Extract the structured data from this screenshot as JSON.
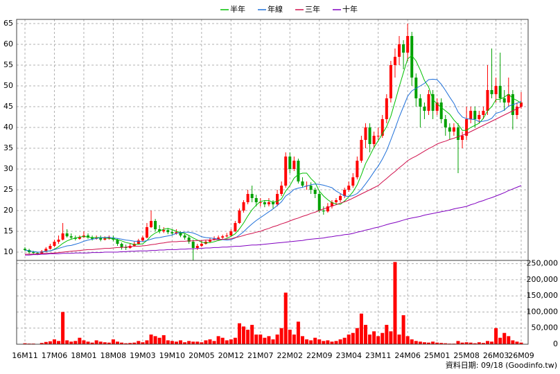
{
  "chart_data": {
    "type": "candlestick",
    "categories": [
      "16M11",
      null,
      null,
      null,
      null,
      null,
      null,
      "17M06",
      null,
      null,
      null,
      null,
      null,
      null,
      "18M01",
      null,
      null,
      null,
      null,
      null,
      null,
      "18M08",
      null,
      null,
      null,
      null,
      null,
      null,
      "19M03",
      null,
      null,
      null,
      null,
      null,
      null,
      "19M10",
      null,
      null,
      null,
      null,
      null,
      null,
      "20M05",
      null,
      null,
      null,
      null,
      null,
      null,
      "20M12",
      null,
      null,
      null,
      null,
      null,
      null,
      "21M07",
      null,
      null,
      null,
      null,
      null,
      null,
      "22M02",
      null,
      null,
      null,
      null,
      null,
      null,
      "22M09",
      null,
      null,
      null,
      null,
      null,
      null,
      "23M04",
      null,
      null,
      null,
      null,
      null,
      null,
      "23M11",
      null,
      null,
      null,
      null,
      null,
      null,
      "24M06",
      null,
      null,
      null,
      null,
      null,
      null,
      "25M01",
      null,
      null,
      null,
      null,
      null,
      null,
      "25M08",
      null,
      null,
      null,
      null,
      null,
      null,
      "26M03",
      null,
      null,
      null,
      null,
      null,
      "26M09"
    ],
    "ohlc": [
      [
        10.8,
        11.2,
        10.2,
        10.5
      ],
      [
        10.5,
        10.8,
        9.6,
        10
      ],
      [
        10,
        10.3,
        9.4,
        9.8
      ],
      [
        9.8,
        10,
        9.3,
        9.6
      ],
      [
        9.6,
        10.5,
        9.5,
        10.2
      ],
      [
        10.2,
        11.2,
        10,
        10.8
      ],
      [
        10.8,
        12,
        10.6,
        11.5
      ],
      [
        11.5,
        13,
        11.2,
        12.5
      ],
      [
        12.5,
        14,
        12,
        13
      ],
      [
        13,
        17,
        12.8,
        14.5
      ],
      [
        14.5,
        15.5,
        13.5,
        13.8
      ],
      [
        13.8,
        14.5,
        13,
        13.5
      ],
      [
        13.5,
        14,
        12.8,
        13.2
      ],
      [
        13.2,
        14,
        13,
        13.6
      ],
      [
        13.6,
        15,
        13.4,
        14
      ],
      [
        14,
        14.5,
        13.2,
        13.5
      ],
      [
        13.5,
        14,
        12.8,
        13.2
      ],
      [
        13.2,
        14,
        13,
        13.4
      ],
      [
        13.4,
        14,
        12.6,
        13
      ],
      [
        13,
        13.8,
        12.8,
        13.3
      ],
      [
        13.3,
        14,
        13,
        13.5
      ],
      [
        13.5,
        14,
        12.6,
        13
      ],
      [
        13,
        13.2,
        11.5,
        12
      ],
      [
        12,
        12.3,
        10.6,
        11.2
      ],
      [
        11.2,
        11.8,
        10.5,
        11
      ],
      [
        11,
        12,
        10.8,
        11.5
      ],
      [
        11.5,
        12.5,
        11.3,
        12
      ],
      [
        12,
        13.2,
        11.8,
        12.8
      ],
      [
        12.8,
        14,
        12.5,
        13.5
      ],
      [
        13.5,
        17,
        13.3,
        16
      ],
      [
        16,
        20,
        15.8,
        17.5
      ],
      [
        17.5,
        18,
        15,
        15.5
      ],
      [
        15.5,
        16.5,
        14.5,
        15
      ],
      [
        15,
        16,
        14.6,
        15.3
      ],
      [
        15.3,
        15.8,
        14.3,
        14.8
      ],
      [
        14.8,
        15.3,
        14,
        14.5
      ],
      [
        14.5,
        15.5,
        14.2,
        14.8
      ],
      [
        14.8,
        15,
        13.6,
        14
      ],
      [
        14,
        14.5,
        13,
        13.5
      ],
      [
        13.5,
        14,
        12,
        12.5
      ],
      [
        12.5,
        13,
        8,
        11
      ],
      [
        11,
        12,
        10.5,
        11.5
      ],
      [
        11.5,
        12.8,
        11.2,
        12
      ],
      [
        12,
        13,
        11.8,
        12.5
      ],
      [
        12.5,
        13.5,
        12.2,
        13
      ],
      [
        13,
        13.8,
        12.8,
        13.2
      ],
      [
        13.2,
        14,
        13,
        13.5
      ],
      [
        13.5,
        14.2,
        13.2,
        13.8
      ],
      [
        13.8,
        14.6,
        13.5,
        14
      ],
      [
        14,
        15.5,
        13.8,
        15
      ],
      [
        15,
        17.5,
        14.8,
        17
      ],
      [
        17,
        20.5,
        16.8,
        20
      ],
      [
        20,
        22.5,
        19.5,
        22
      ],
      [
        22,
        25,
        21.5,
        24
      ],
      [
        24,
        26,
        22,
        23
      ],
      [
        23,
        23.8,
        21,
        22
      ],
      [
        22,
        23,
        21,
        22
      ],
      [
        22,
        22.5,
        20.8,
        21.5
      ],
      [
        21.5,
        23,
        21,
        22
      ],
      [
        22,
        22.5,
        20.5,
        21.5
      ],
      [
        21.5,
        25,
        21,
        24
      ],
      [
        24,
        27,
        23.5,
        26
      ],
      [
        26,
        34,
        25.5,
        33
      ],
      [
        33,
        34,
        29,
        30
      ],
      [
        30,
        33,
        29.5,
        32
      ],
      [
        32,
        32.5,
        26.5,
        27
      ],
      [
        27,
        28,
        25.5,
        26
      ],
      [
        26,
        27,
        25,
        26
      ],
      [
        26,
        26.8,
        24,
        25
      ],
      [
        25,
        25.5,
        23,
        24
      ],
      [
        24,
        24.5,
        19.5,
        20
      ],
      [
        20,
        21,
        19,
        19.8
      ],
      [
        19.8,
        21.8,
        19.5,
        21
      ],
      [
        21,
        22.5,
        20.5,
        22
      ],
      [
        22,
        23,
        21.5,
        22.5
      ],
      [
        22.5,
        24,
        22,
        23.5
      ],
      [
        23.5,
        25.5,
        23,
        25
      ],
      [
        25,
        27,
        24.5,
        26
      ],
      [
        26,
        29,
        25.5,
        28
      ],
      [
        28,
        33,
        27.5,
        32
      ],
      [
        32,
        38,
        31.5,
        37
      ],
      [
        37,
        41,
        35,
        40
      ],
      [
        40,
        41,
        34,
        36
      ],
      [
        36,
        39,
        35,
        38
      ],
      [
        38,
        40,
        37,
        38
      ],
      [
        38,
        43,
        37.5,
        42
      ],
      [
        42,
        48,
        41,
        47
      ],
      [
        47,
        56,
        46,
        55
      ],
      [
        55,
        59,
        52,
        57
      ],
      [
        57,
        62,
        55,
        60
      ],
      [
        60,
        61,
        54,
        58
      ],
      [
        58,
        65,
        56,
        62
      ],
      [
        62,
        63,
        50,
        52
      ],
      [
        52,
        53,
        45,
        47
      ],
      [
        47,
        48,
        40,
        45
      ],
      [
        45,
        46,
        42,
        44
      ],
      [
        44,
        49,
        43,
        48
      ],
      [
        48,
        49,
        42,
        44
      ],
      [
        44,
        47,
        43,
        46
      ],
      [
        46,
        47,
        41,
        42
      ],
      [
        42,
        43,
        38,
        40
      ],
      [
        40,
        41,
        37,
        39
      ],
      [
        39,
        41,
        38,
        40
      ],
      [
        40,
        41,
        29,
        37
      ],
      [
        37,
        39,
        35,
        38
      ],
      [
        38,
        45,
        37,
        42
      ],
      [
        42,
        45,
        41,
        44
      ],
      [
        44,
        45,
        40,
        42
      ],
      [
        42,
        44,
        41,
        43
      ],
      [
        43,
        45,
        42,
        44
      ],
      [
        44,
        55,
        43,
        49
      ],
      [
        49,
        59,
        47,
        48
      ],
      [
        48,
        52,
        46,
        50
      ],
      [
        50,
        58,
        46,
        47
      ],
      [
        47,
        49,
        44,
        46
      ],
      [
        46,
        52,
        45,
        48
      ],
      [
        48,
        49,
        39.5,
        43
      ],
      [
        43,
        46,
        42,
        45
      ],
      [
        45,
        48.5,
        44.5,
        46
      ]
    ],
    "up_color": "#ff0000",
    "down_color": "#00a000",
    "series": [
      {
        "name": "半年",
        "color": "#00c000",
        "values": [
          10.5,
          10.3,
          10.1,
          10,
          10,
          10.2,
          10.3,
          10.7,
          11.3,
          12.1,
          12.7,
          13.1,
          13.4,
          13.6,
          13.8,
          13.6,
          13.5,
          13.5,
          13.5,
          13.4,
          13.3,
          13.2,
          13,
          12.7,
          12.3,
          12.1,
          11.8,
          11.9,
          12,
          12.8,
          13.9,
          14.6,
          15.1,
          15.5,
          15.7,
          15.4,
          15,
          14.7,
          14.5,
          14,
          13.4,
          12.9,
          12.4,
          12.2,
          12.3,
          12.5,
          12.8,
          13,
          13.3,
          13.8,
          14.4,
          15.6,
          17,
          18.7,
          20.2,
          21.3,
          22.2,
          22.4,
          22.4,
          22,
          22.2,
          22.8,
          24.7,
          26,
          27.8,
          28.7,
          29,
          29,
          27.7,
          26.7,
          24.7,
          23.5,
          22.6,
          21.9,
          21.6,
          21.5,
          22.3,
          23.3,
          24.5,
          26.2,
          28.6,
          31.3,
          33.2,
          35.2,
          36.8,
          38.5,
          40.2,
          42.7,
          46.2,
          49.8,
          53.2,
          56.5,
          57.3,
          56,
          53.8,
          51.3,
          49.7,
          46.7,
          45.7,
          44.8,
          44,
          43.2,
          41.8,
          40.7,
          39.3,
          39.3,
          40,
          40.5,
          41,
          42.2,
          44,
          45,
          46.7,
          46.8,
          47.3,
          48,
          47,
          46.5,
          45.8
        ]
      },
      {
        "name": "年線",
        "color": "#1e6fd9",
        "values": [
          10.5,
          10.3,
          10.1,
          10,
          10,
          10.2,
          10.3,
          10.6,
          10.9,
          11.2,
          11.5,
          11.6,
          11.9,
          12.2,
          12.6,
          12.9,
          13.1,
          13.3,
          13.5,
          13.5,
          13.6,
          13.4,
          13.3,
          13.1,
          12.9,
          12.8,
          12.6,
          12.6,
          12.5,
          12.8,
          13.1,
          13.4,
          13.5,
          13.7,
          13.9,
          14.1,
          14.5,
          14.7,
          14.8,
          14.8,
          14.6,
          14.2,
          13.7,
          13.5,
          13.4,
          13.3,
          13.1,
          13,
          12.9,
          13,
          13.4,
          14.1,
          14.9,
          15.9,
          16.8,
          17.6,
          18.3,
          19,
          19.7,
          20.4,
          21.2,
          22.1,
          23.5,
          24.2,
          25.1,
          25.4,
          25.6,
          25.9,
          26.2,
          26.4,
          26.3,
          26.1,
          25.8,
          25.5,
          24.7,
          24.1,
          23.5,
          23.4,
          23.6,
          24.1,
          25.1,
          26.4,
          27.8,
          29.3,
          30.7,
          32.4,
          34.4,
          37,
          39.7,
          42.5,
          45,
          47.5,
          48.8,
          49.4,
          50,
          50.6,
          51.5,
          51.6,
          51.5,
          50.4,
          48.9,
          47.3,
          45.8,
          43.7,
          42.5,
          42.1,
          42,
          41.9,
          41.4,
          41.5,
          41.7,
          42.2,
          43.4,
          43.7,
          44.2,
          45.1,
          45.5,
          45.8,
          46.3
        ]
      },
      {
        "name": "三年",
        "color": "#d0104c",
        "values": [
          9.5,
          9.5,
          9.5,
          9.6,
          9.6,
          9.7,
          9.7,
          9.8,
          9.9,
          10,
          10.1,
          10.2,
          10.3,
          10.4,
          10.5,
          10.6,
          10.6,
          10.7,
          10.8,
          10.9,
          10.9,
          11,
          11.1,
          11.1,
          11.2,
          11.3,
          11.4,
          11.4,
          11.5,
          11.6,
          11.8,
          11.9,
          12.1,
          12.2,
          12.4,
          12.5,
          12.5,
          12.6,
          12.6,
          12.7,
          12.7,
          12.8,
          12.8,
          12.9,
          12.9,
          13,
          13,
          13.1,
          13.1,
          13.2,
          13.5,
          13.7,
          14,
          14.3,
          14.5,
          14.8,
          15,
          15.4,
          15.7,
          16.1,
          16.4,
          16.8,
          17.1,
          17.5,
          17.9,
          18.2,
          18.6,
          18.9,
          19.3,
          19.6,
          20,
          20.4,
          20.7,
          21.1,
          21.4,
          21.8,
          22.1,
          22.5,
          23,
          23.5,
          24,
          24.5,
          25,
          25.5,
          26,
          26.9,
          27.7,
          28.6,
          29.4,
          30.3,
          31.1,
          32,
          32.6,
          33.1,
          33.7,
          34.3,
          34.9,
          35.4,
          36,
          36.4,
          36.7,
          37.1,
          37.4,
          37.8,
          38.1,
          38.5,
          39,
          39.5,
          40,
          40.5,
          41,
          41.5,
          42,
          42.5,
          43,
          43.5,
          44,
          44.5,
          45
        ]
      },
      {
        "name": "十年",
        "color": "#8000c0",
        "values": [
          9.3,
          9.3,
          9.4,
          9.4,
          9.5,
          9.5,
          9.6,
          9.6,
          9.6,
          9.7,
          9.7,
          9.7,
          9.8,
          9.8,
          9.8,
          9.8,
          9.9,
          9.9,
          9.9,
          10,
          10,
          10,
          10,
          10.1,
          10.1,
          10.2,
          10.2,
          10.3,
          10.3,
          10.3,
          10.4,
          10.4,
          10.5,
          10.5,
          10.6,
          10.6,
          10.6,
          10.7,
          10.7,
          10.8,
          10.8,
          10.9,
          10.9,
          11,
          11,
          11.1,
          11.1,
          11.2,
          11.2,
          11.3,
          11.4,
          11.4,
          11.5,
          11.6,
          11.7,
          11.7,
          11.8,
          11.9,
          12,
          12.1,
          12.2,
          12.3,
          12.4,
          12.5,
          12.6,
          12.7,
          12.8,
          13,
          13.1,
          13.2,
          13.3,
          13.4,
          13.6,
          13.7,
          13.9,
          14,
          14.2,
          14.3,
          14.5,
          14.8,
          15,
          15.3,
          15.5,
          15.8,
          16,
          16.3,
          16.6,
          16.9,
          17.1,
          17.4,
          17.7,
          18,
          18.2,
          18.4,
          18.6,
          18.9,
          19.1,
          19.3,
          19.5,
          19.7,
          19.9,
          20.1,
          20.4,
          20.6,
          20.8,
          21,
          21.4,
          21.7,
          22.1,
          22.4,
          22.8,
          23.1,
          23.5,
          23.9,
          24.3,
          24.8,
          25.2,
          25.6,
          26
        ]
      }
    ],
    "volume": [
      3000,
      2000,
      2000,
      1000,
      4000,
      7000,
      9000,
      15000,
      10000,
      100000,
      12000,
      8000,
      10000,
      20000,
      12000,
      8000,
      5000,
      12000,
      8000,
      6000,
      5000,
      15000,
      8000,
      5000,
      3000,
      4000,
      5000,
      10000,
      6000,
      12000,
      30000,
      25000,
      20000,
      28000,
      12000,
      10000,
      8000,
      12000,
      6000,
      10000,
      8000,
      8000,
      6000,
      12000,
      15000,
      10000,
      25000,
      20000,
      12000,
      15000,
      20000,
      65000,
      55000,
      45000,
      60000,
      30000,
      30000,
      20000,
      25000,
      15000,
      30000,
      50000,
      160000,
      45000,
      30000,
      70000,
      25000,
      15000,
      12000,
      20000,
      15000,
      10000,
      12000,
      8000,
      10000,
      15000,
      20000,
      30000,
      35000,
      50000,
      95000,
      60000,
      30000,
      40000,
      25000,
      35000,
      60000,
      40000,
      255000,
      30000,
      90000,
      25000,
      15000,
      10000,
      8000,
      6000,
      5000,
      8000,
      5000,
      4000,
      3000,
      2000,
      2000,
      10000,
      5000,
      6000,
      5000,
      3000,
      6000,
      4000,
      10000,
      8000,
      50000,
      20000,
      35000,
      25000,
      12000,
      8000,
      5000
    ],
    "volume_color": "#ff0000",
    "ylim": [
      8,
      66
    ],
    "yticks": [
      10,
      15,
      20,
      25,
      30,
      35,
      40,
      45,
      50,
      55,
      60,
      65
    ],
    "y2lim": [
      0,
      260000
    ],
    "y2ticks": [
      0,
      {
        "value": 50000,
        "label": "50,000"
      },
      {
        "value": 100000,
        "label": "100,000"
      },
      {
        "value": 150000,
        "label": "150,000"
      },
      {
        "value": 200000,
        "label": "200,000"
      },
      {
        "value": 250000,
        "label": "250,000"
      }
    ],
    "grid": true,
    "source": "資料日期: 09/18  (Goodinfo.tw)"
  }
}
